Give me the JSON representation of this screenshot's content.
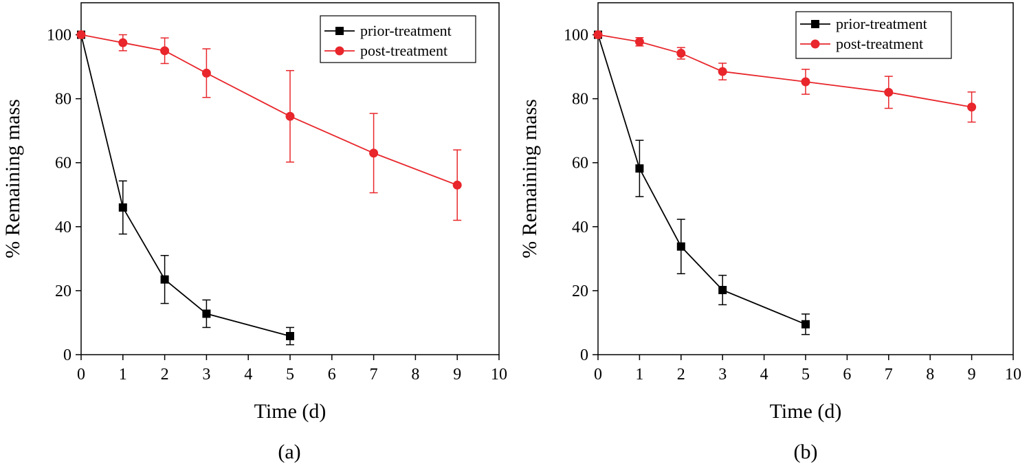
{
  "chart_data": [
    {
      "type": "line",
      "caption": "(a)",
      "xlabel": "Time (d)",
      "ylabel": "% Remaining mass",
      "xlim": [
        0,
        10
      ],
      "ylim": [
        0,
        110
      ],
      "xticks": [
        "0",
        "1",
        "2",
        "3",
        "4",
        "5",
        "6",
        "7",
        "8",
        "9",
        "10"
      ],
      "yticks": [
        "0",
        "20",
        "40",
        "60",
        "80",
        "100"
      ],
      "legend_position": "top-right",
      "series": [
        {
          "name": "prior-treatment",
          "color": "#000000",
          "marker": "square",
          "x": [
            0,
            1,
            2,
            3,
            5
          ],
          "y": [
            100,
            46,
            23.5,
            12.8,
            5.8
          ],
          "err": [
            0,
            8.3,
            7.5,
            4.3,
            2.7
          ]
        },
        {
          "name": "post-treatment",
          "color": "#e8262b",
          "marker": "circle",
          "x": [
            0,
            1,
            2,
            3,
            5,
            7,
            9
          ],
          "y": [
            100,
            97.5,
            95,
            88,
            74.5,
            63,
            53
          ],
          "err": [
            0,
            2.5,
            4,
            7.6,
            14.3,
            12.4,
            11
          ]
        }
      ]
    },
    {
      "type": "line",
      "caption": "(b)",
      "xlabel": "Time (d)",
      "ylabel": "% Remaining mass",
      "xlim": [
        0,
        10
      ],
      "ylim": [
        0,
        110
      ],
      "xticks": [
        "0",
        "1",
        "2",
        "3",
        "4",
        "5",
        "6",
        "7",
        "8",
        "9",
        "10"
      ],
      "yticks": [
        "0",
        "20",
        "40",
        "60",
        "80",
        "100"
      ],
      "legend_position": "top-right",
      "series": [
        {
          "name": "prior-treatment",
          "color": "#000000",
          "marker": "square",
          "x": [
            0,
            1,
            2,
            3,
            5
          ],
          "y": [
            100,
            58.2,
            33.8,
            20.2,
            9.5
          ],
          "err": [
            0,
            8.8,
            8.5,
            4.6,
            3.2
          ]
        },
        {
          "name": "post-treatment",
          "color": "#e8262b",
          "marker": "circle",
          "x": [
            0,
            1,
            2,
            3,
            5,
            7,
            9
          ],
          "y": [
            100,
            97.8,
            94.2,
            88.5,
            85.3,
            82,
            77.4
          ],
          "err": [
            0,
            1.3,
            1.8,
            2.6,
            3.9,
            5,
            4.7
          ]
        }
      ]
    }
  ]
}
